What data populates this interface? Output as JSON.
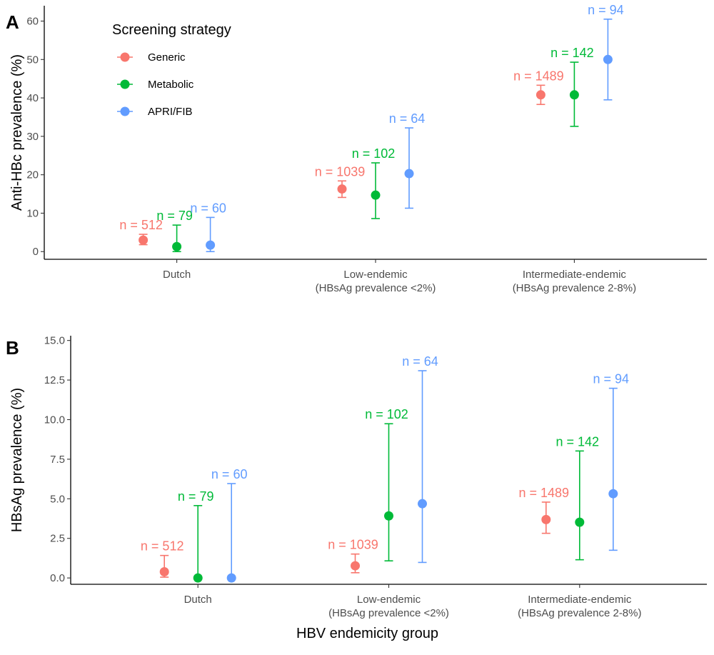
{
  "legend": {
    "title": "Screening strategy",
    "placement": "top-left"
  },
  "colors": {
    "Generic": "#F8766D",
    "Metabolic": "#00BA38",
    "APRI/FIB": "#619CFF"
  },
  "chart_data": [
    {
      "type": "scatter",
      "panel": "A",
      "ylabel": "Anti-HBc prevalence (%)",
      "xlabel": "",
      "ylim": [
        -2,
        64
      ],
      "yticks": [
        "0",
        "10",
        "20",
        "30",
        "40",
        "50",
        "60"
      ],
      "ytick_values": [
        0,
        10,
        20,
        30,
        40,
        50,
        60
      ],
      "categories": [
        [
          "Dutch"
        ],
        [
          "Low-endemic",
          "(HBsAg prevalence <2%)"
        ],
        [
          "Intermediate-endemic",
          "(HBsAg prevalence 2-8%)"
        ]
      ],
      "grid": false,
      "series": [
        {
          "name": "Generic",
          "values": [
            3.0,
            16.3,
            40.8
          ],
          "lower": [
            1.8,
            14.1,
            38.3
          ],
          "upper": [
            4.5,
            18.4,
            43.3
          ],
          "n_labels": [
            "n = 512",
            "n = 1039",
            "n = 1489"
          ]
        },
        {
          "name": "Metabolic",
          "values": [
            1.3,
            14.7,
            40.8
          ],
          "lower": [
            0.0,
            8.6,
            32.6
          ],
          "upper": [
            6.9,
            23.1,
            49.3
          ],
          "n_labels": [
            "n = 79",
            "n = 102",
            "n = 142"
          ]
        },
        {
          "name": "APRI/FIB",
          "values": [
            1.7,
            20.3,
            50.0
          ],
          "lower": [
            0.0,
            11.3,
            39.5
          ],
          "upper": [
            8.9,
            32.2,
            60.5
          ],
          "n_labels": [
            "n = 60",
            "n = 64",
            "n = 94"
          ]
        }
      ]
    },
    {
      "type": "scatter",
      "panel": "B",
      "ylabel": "HBsAg prevalence (%)",
      "xlabel": "HBV endemicity group",
      "ylim": [
        -0.4,
        15.3
      ],
      "yticks": [
        "0.0",
        "2.5",
        "5.0",
        "7.5",
        "10.0",
        "12.5",
        "15.0"
      ],
      "ytick_values": [
        0,
        2.5,
        5,
        7.5,
        10,
        12.5,
        15
      ],
      "categories": [
        [
          "Dutch"
        ],
        [
          "Low-endemic",
          "(HBsAg prevalence <2%)"
        ],
        [
          "Intermediate-endemic",
          "(HBsAg prevalence 2-8%)"
        ]
      ],
      "grid": false,
      "series": [
        {
          "name": "Generic",
          "values": [
            0.39,
            0.77,
            3.69
          ],
          "lower": [
            0.05,
            0.33,
            2.82
          ],
          "upper": [
            1.42,
            1.51,
            4.79
          ],
          "n_labels": [
            "n = 512",
            "n = 1039",
            "n = 1489"
          ]
        },
        {
          "name": "Metabolic",
          "values": [
            0.0,
            3.92,
            3.52
          ],
          "lower": [
            0.0,
            1.08,
            1.15
          ],
          "upper": [
            4.57,
            9.74,
            8.02
          ],
          "n_labels": [
            "n = 79",
            "n = 102",
            "n = 142"
          ]
        },
        {
          "name": "APRI/FIB",
          "values": [
            0.0,
            4.69,
            5.32
          ],
          "lower": [
            0.0,
            0.98,
            1.75
          ],
          "upper": [
            5.96,
            13.09,
            11.98
          ],
          "n_labels": [
            "n = 60",
            "n = 64",
            "n = 94"
          ]
        }
      ]
    }
  ]
}
